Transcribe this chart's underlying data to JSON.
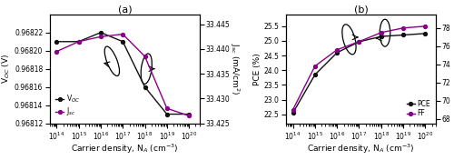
{
  "x": [
    100000000000000.0,
    1000000000000000.0,
    1e+16,
    1e+17,
    1e+18,
    1e+19,
    1e+20
  ],
  "voc": [
    0.96821,
    0.96821,
    0.96822,
    0.96821,
    0.96816,
    0.96813,
    0.96813
  ],
  "jsc": [
    33.4395,
    33.4415,
    33.4425,
    33.443,
    33.4385,
    33.428,
    33.4265
  ],
  "pce": [
    22.55,
    23.85,
    24.6,
    24.97,
    25.15,
    25.2,
    25.25
  ],
  "ff": [
    69.0,
    73.8,
    75.6,
    76.5,
    77.5,
    78.0,
    78.2
  ],
  "voc_color": "#111111",
  "jsc_color": "#880088",
  "pce_color": "#111111",
  "ff_color": "#880088",
  "title_a": "(a)",
  "title_b": "(b)",
  "xlabel": "Carrier density, N$_A$ (cm$^{-3}$)",
  "ylabel_voc": "V$_{OC}$ (V)",
  "ylabel_jsc": "J$_{sc}$ (mA/cm$^{2}$)",
  "ylabel_pce": "PCE (%)",
  "ylabel_ff": "FF (%)",
  "voc_ylim": [
    0.96812,
    0.96824
  ],
  "jsc_ylim": [
    33.425,
    33.447
  ],
  "pce_ylim": [
    22.2,
    25.9
  ],
  "ff_ylim": [
    67.5,
    79.5
  ],
  "voc_yticks": [
    0.96812,
    0.96814,
    0.96816,
    0.96818,
    0.9682,
    0.96822
  ],
  "jsc_yticks": [
    33.425,
    33.43,
    33.435,
    33.44,
    33.445
  ],
  "pce_yticks": [
    22.5,
    23.0,
    23.5,
    24.0,
    24.5,
    25.0,
    25.5
  ],
  "ff_yticks": [
    68,
    70,
    72,
    74,
    76,
    78
  ],
  "tick_labelsize": 5.5,
  "label_fontsize": 6.5,
  "title_fontsize": 8,
  "legend_fontsize": 5.5
}
